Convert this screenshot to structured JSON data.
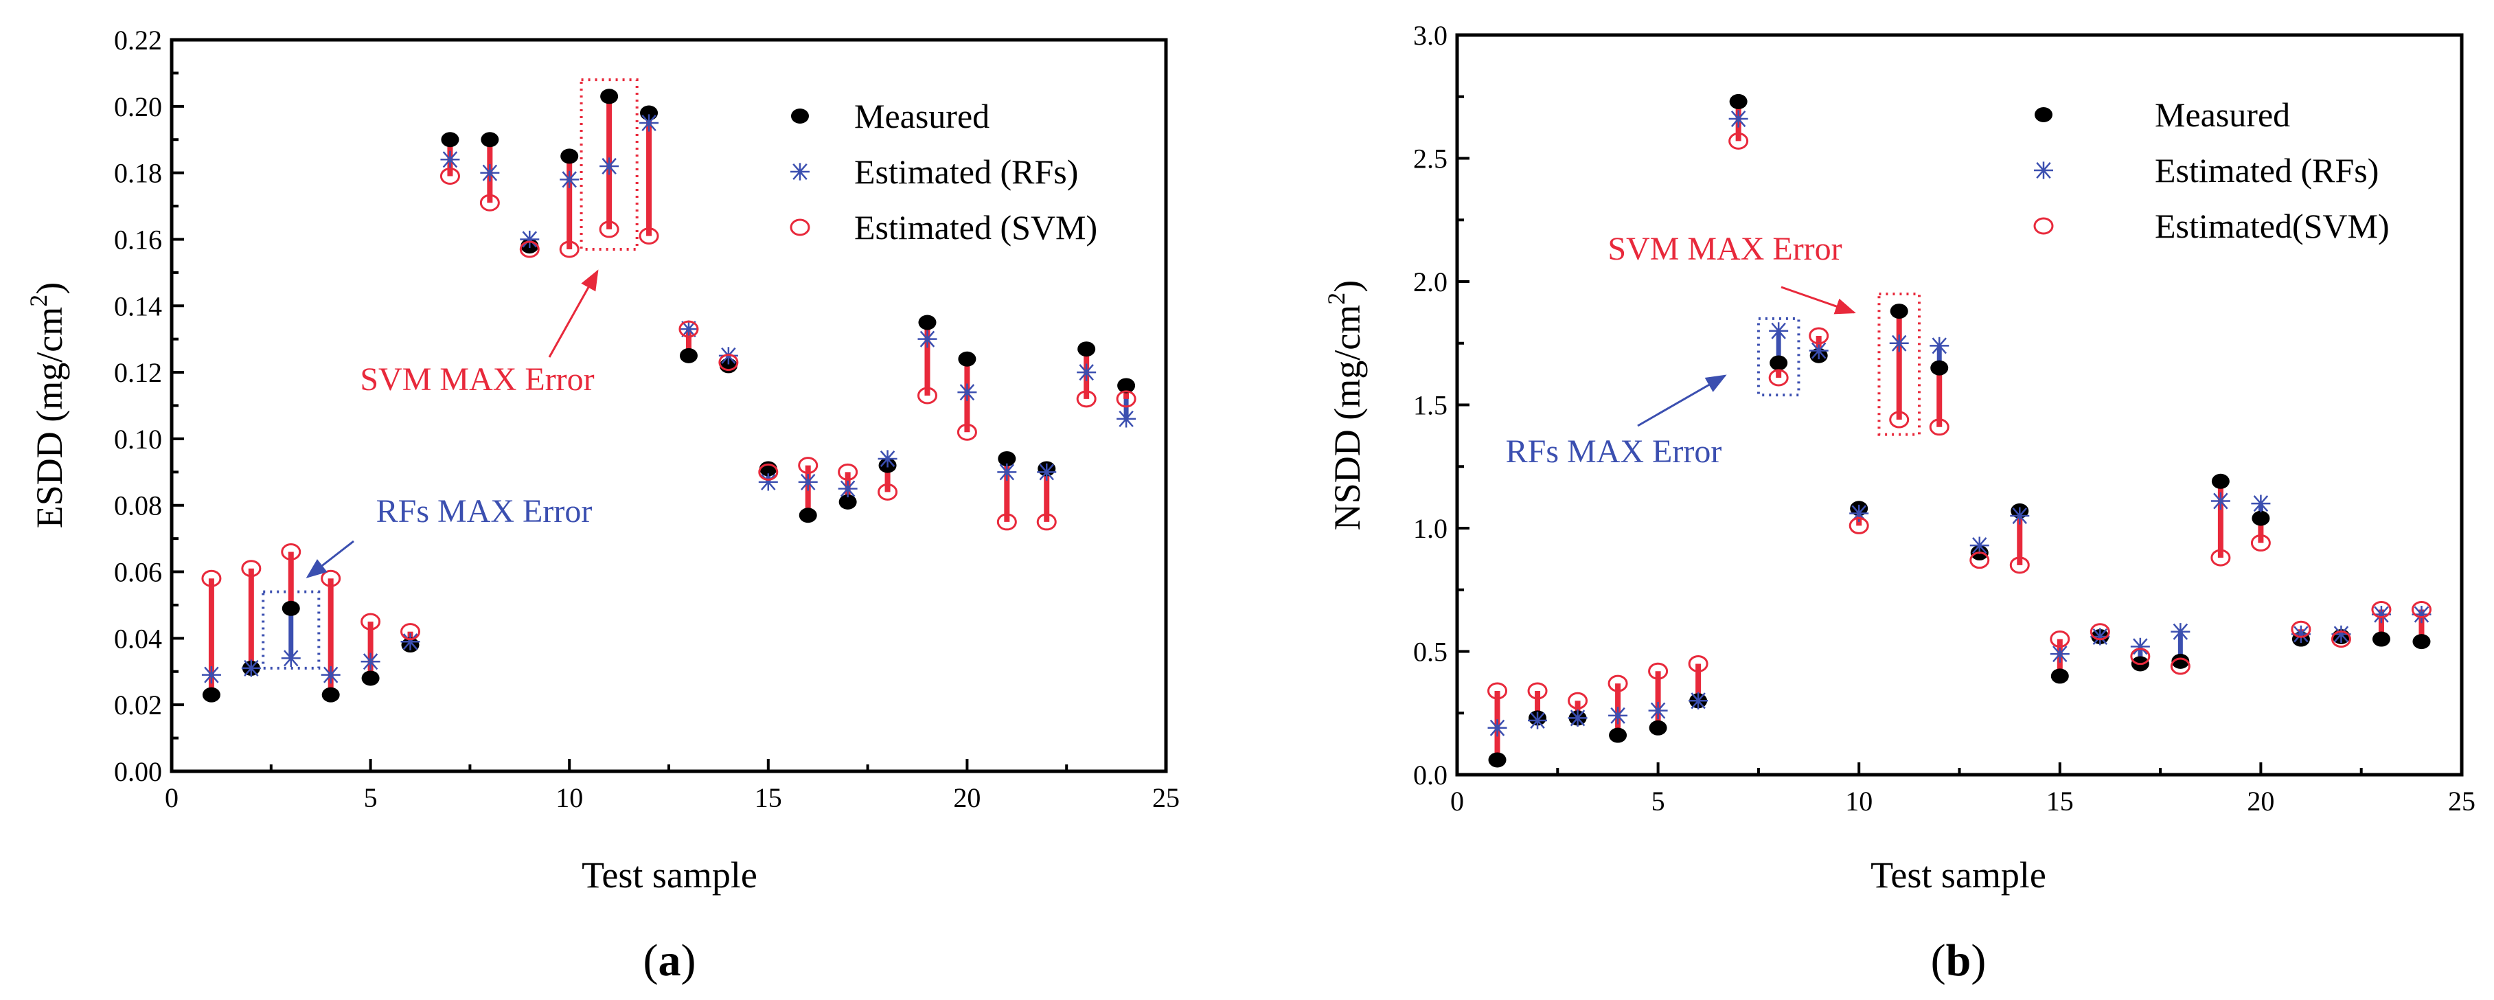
{
  "colors": {
    "measured": "#000000",
    "rfs": "#3b4fb0",
    "svm": "#e8293b"
  },
  "chart_data": [
    {
      "type": "scatter",
      "panel_label": "a",
      "xlabel": "Test sample",
      "ylabel": {
        "prefix": "ESDD (mg/cm",
        "sup": "2",
        "suffix": ")"
      },
      "xlim": [
        0,
        25
      ],
      "ylim": [
        0,
        0.22
      ],
      "xticks": [
        "0",
        "5",
        "10",
        "15",
        "20",
        "25"
      ],
      "yticks": [
        "0.00",
        "0.02",
        "0.04",
        "0.06",
        "0.08",
        "0.10",
        "0.12",
        "0.14",
        "0.16",
        "0.18",
        "0.20",
        "0.22"
      ],
      "legend": {
        "position": "top-right",
        "labels": [
          "Measured",
          "Estimated (RFs)",
          "Estimated (SVM)"
        ]
      },
      "annotations": {
        "svm": "SVM MAX Error",
        "rfs": "RFs MAX Error"
      },
      "x": [
        1,
        2,
        3,
        4,
        5,
        6,
        7,
        8,
        9,
        10,
        11,
        12,
        13,
        14,
        15,
        16,
        17,
        18,
        19,
        20,
        21,
        22,
        23,
        24
      ],
      "series": [
        {
          "name": "Measured",
          "values": [
            0.023,
            0.031,
            0.049,
            0.023,
            0.028,
            0.038,
            0.19,
            0.19,
            0.158,
            0.185,
            0.203,
            0.198,
            0.125,
            0.122,
            0.091,
            0.077,
            0.081,
            0.092,
            0.135,
            0.124,
            0.094,
            0.091,
            0.127,
            0.116
          ]
        },
        {
          "name": "Estimated (RFs)",
          "values": [
            0.029,
            0.031,
            0.034,
            0.029,
            0.033,
            0.039,
            0.184,
            0.18,
            0.16,
            0.178,
            0.182,
            0.195,
            0.133,
            0.125,
            0.087,
            0.087,
            0.085,
            0.094,
            0.13,
            0.114,
            0.09,
            0.09,
            0.12,
            0.106
          ]
        },
        {
          "name": "Estimated (SVM)",
          "values": [
            0.058,
            0.061,
            0.066,
            0.058,
            0.045,
            0.042,
            0.179,
            0.171,
            0.157,
            0.157,
            0.163,
            0.161,
            0.133,
            0.123,
            0.09,
            0.092,
            0.09,
            0.084,
            0.113,
            0.102,
            0.075,
            0.075,
            0.112,
            0.112
          ]
        }
      ]
    },
    {
      "type": "scatter",
      "panel_label": "b",
      "xlabel": "Test sample",
      "ylabel": {
        "prefix": "NSDD (mg/cm",
        "sup": "2",
        "suffix": ")"
      },
      "xlim": [
        0,
        25
      ],
      "ylim": [
        0,
        3.0
      ],
      "xticks": [
        "0",
        "5",
        "10",
        "15",
        "20",
        "25"
      ],
      "yticks": [
        "0.0",
        "0.5",
        "1.0",
        "1.5",
        "2.0",
        "2.5",
        "3.0"
      ],
      "legend": {
        "position": "top-right",
        "labels": [
          "Measured",
          "Estimated (RFs)",
          "Estimated(SVM)"
        ]
      },
      "annotations": {
        "svm": "SVM MAX Error",
        "rfs": "RFs MAX Error"
      },
      "x": [
        1,
        2,
        3,
        4,
        5,
        6,
        7,
        8,
        9,
        10,
        11,
        12,
        13,
        14,
        15,
        16,
        17,
        18,
        19,
        20,
        21,
        22,
        23,
        24
      ],
      "series": [
        {
          "name": "Measured",
          "values": [
            0.06,
            0.23,
            0.23,
            0.16,
            0.19,
            0.3,
            2.73,
            1.67,
            1.7,
            1.08,
            1.88,
            1.65,
            0.9,
            1.07,
            0.4,
            0.56,
            0.45,
            0.46,
            1.19,
            1.04,
            0.55,
            0.56,
            0.55,
            0.54
          ]
        },
        {
          "name": "Estimated (RFs)",
          "values": [
            0.19,
            0.22,
            0.23,
            0.24,
            0.26,
            0.3,
            2.66,
            1.8,
            1.72,
            1.06,
            1.75,
            1.74,
            0.93,
            1.05,
            0.49,
            0.56,
            0.52,
            0.58,
            1.11,
            1.1,
            0.57,
            0.57,
            0.65,
            0.65
          ]
        },
        {
          "name": "Estimated (SVM)",
          "values": [
            0.34,
            0.34,
            0.3,
            0.37,
            0.42,
            0.45,
            2.57,
            1.61,
            1.78,
            1.01,
            1.44,
            1.41,
            0.87,
            0.85,
            0.55,
            0.58,
            0.48,
            0.44,
            0.88,
            0.94,
            0.59,
            0.55,
            0.67,
            0.67
          ]
        }
      ]
    }
  ]
}
